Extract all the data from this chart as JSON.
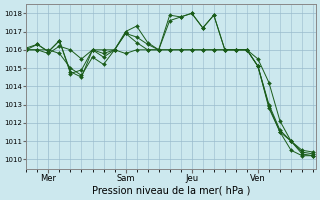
{
  "xlabel": "Pression niveau de la mer( hPa )",
  "background_color": "#cce8ee",
  "grid_color": "#99bbcc",
  "line_color": "#1a5c1a",
  "ylim": [
    1009.5,
    1018.5
  ],
  "y_ticks": [
    1010,
    1011,
    1012,
    1013,
    1014,
    1015,
    1016,
    1017,
    1018
  ],
  "x_tick_labels": [
    "Mer",
    "Sam",
    "Jeu",
    "Ven"
  ],
  "x_tick_positions": [
    16,
    72,
    120,
    168
  ],
  "xlim": [
    0,
    210
  ],
  "series": [
    {
      "x": [
        0,
        8,
        16,
        24,
        32,
        40,
        48,
        56,
        64,
        72,
        80,
        88,
        96,
        104,
        112,
        120,
        128,
        136,
        144,
        152,
        160,
        168,
        176,
        184,
        192,
        200,
        208
      ],
      "y": [
        1016.1,
        1016.3,
        1015.9,
        1016.5,
        1014.7,
        1014.9,
        1016.0,
        1015.6,
        1016.0,
        1016.9,
        1016.7,
        1016.3,
        1016.0,
        1017.9,
        1017.8,
        1018.0,
        1017.2,
        1017.9,
        1016.0,
        1016.0,
        1016.0,
        1015.1,
        1012.9,
        1011.5,
        1011.0,
        1010.4,
        1010.3
      ]
    },
    {
      "x": [
        0,
        8,
        16,
        24,
        32,
        40,
        48,
        56,
        64,
        72,
        80,
        88,
        96,
        104,
        112,
        120,
        128,
        136,
        144,
        152,
        160,
        168,
        176,
        184,
        192,
        200,
        208
      ],
      "y": [
        1016.0,
        1016.0,
        1015.8,
        1016.2,
        1016.0,
        1015.5,
        1016.0,
        1016.0,
        1016.0,
        1016.9,
        1016.4,
        1016.0,
        1016.0,
        1016.0,
        1016.0,
        1016.0,
        1016.0,
        1016.0,
        1016.0,
        1016.0,
        1016.0,
        1015.5,
        1014.2,
        1012.1,
        1011.0,
        1010.3,
        1010.2
      ]
    },
    {
      "x": [
        0,
        8,
        16,
        24,
        32,
        40,
        48,
        56,
        64,
        72,
        80,
        88,
        96,
        104,
        112,
        120,
        128,
        136,
        144,
        152,
        160,
        168,
        176,
        184,
        192,
        200,
        208
      ],
      "y": [
        1016.0,
        1016.0,
        1016.0,
        1015.8,
        1015.0,
        1014.6,
        1015.6,
        1015.2,
        1016.0,
        1015.8,
        1016.0,
        1016.0,
        1016.0,
        1016.0,
        1016.0,
        1016.0,
        1016.0,
        1016.0,
        1016.0,
        1016.0,
        1016.0,
        1015.1,
        1013.0,
        1011.6,
        1011.0,
        1010.5,
        1010.4
      ]
    },
    {
      "x": [
        0,
        8,
        16,
        24,
        32,
        40,
        48,
        56,
        64,
        72,
        80,
        88,
        96,
        104,
        112,
        120,
        128,
        136,
        144,
        152,
        160,
        168,
        176,
        184,
        192,
        200,
        208
      ],
      "y": [
        1016.0,
        1016.3,
        1015.9,
        1016.5,
        1014.8,
        1014.5,
        1016.0,
        1015.8,
        1016.0,
        1017.0,
        1017.3,
        1016.4,
        1016.0,
        1017.6,
        1017.8,
        1018.0,
        1017.2,
        1017.9,
        1016.0,
        1016.0,
        1016.0,
        1015.1,
        1012.8,
        1011.5,
        1010.5,
        1010.2,
        1010.2
      ]
    }
  ]
}
